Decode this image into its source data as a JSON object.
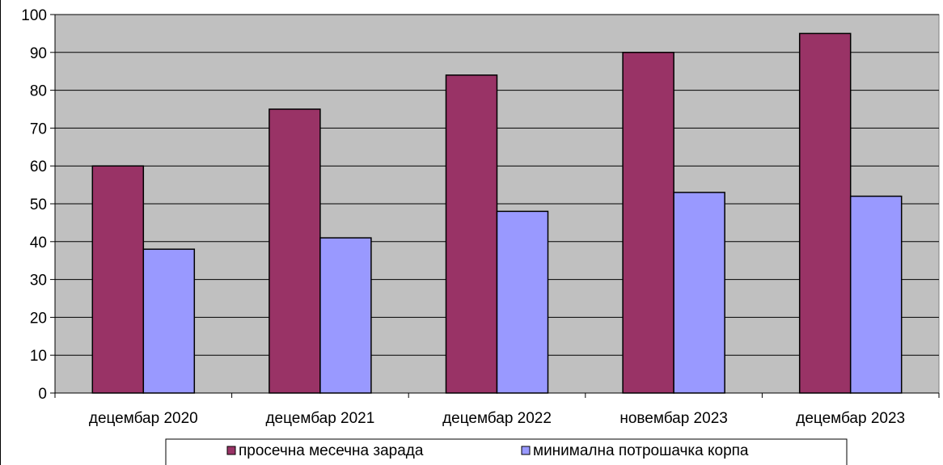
{
  "chart_data": {
    "type": "bar",
    "title": "",
    "categories": [
      "децембар 2020",
      "децембар 2021",
      "децембар 2022",
      "новембар 2023",
      "децембар 2023"
    ],
    "series": [
      {
        "name": "просечна месечна зарада",
        "values": [
          60,
          75,
          84,
          90,
          95
        ],
        "color": "#993366"
      },
      {
        "name": "минимална потрошачка корпа",
        "values": [
          38,
          41,
          48,
          53,
          52
        ],
        "color": "#9999FF"
      }
    ],
    "xlabel": "",
    "ylabel": "",
    "ylim": [
      0,
      100
    ],
    "yticks": [
      0,
      10,
      20,
      30,
      40,
      50,
      60,
      70,
      80,
      90,
      100
    ],
    "ytick_labels": [
      "0",
      "10",
      "20",
      "30",
      "40",
      "50",
      "60",
      "70",
      "80",
      "90",
      "100"
    ],
    "grid": true,
    "plot_background": "#C0C0C0",
    "legend_position": "bottom"
  }
}
